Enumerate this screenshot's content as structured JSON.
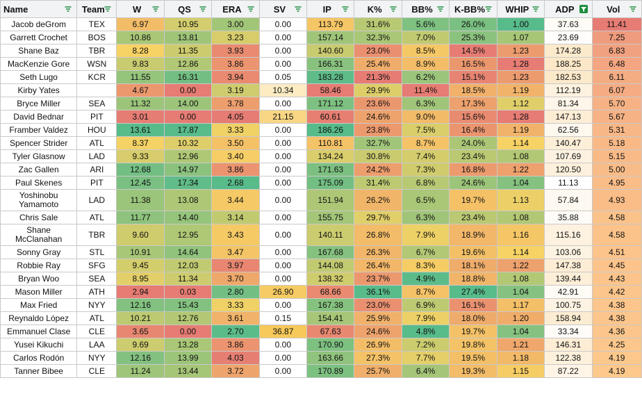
{
  "columns": [
    {
      "key": "name",
      "label": "Name",
      "filter_active": false
    },
    {
      "key": "team",
      "label": "Team",
      "filter_active": false
    },
    {
      "key": "w",
      "label": "W",
      "filter_active": false
    },
    {
      "key": "qs",
      "label": "QS",
      "filter_active": false
    },
    {
      "key": "era",
      "label": "ERA",
      "filter_active": false
    },
    {
      "key": "sv",
      "label": "SV",
      "filter_active": false
    },
    {
      "key": "ip",
      "label": "IP",
      "filter_active": false
    },
    {
      "key": "k",
      "label": "K%",
      "filter_active": false
    },
    {
      "key": "bb",
      "label": "BB%",
      "filter_active": false
    },
    {
      "key": "kbb",
      "label": "K-BB%",
      "filter_active": false
    },
    {
      "key": "whip",
      "label": "WHIP",
      "filter_active": false
    },
    {
      "key": "adp",
      "label": "ADP",
      "filter_active": true
    },
    {
      "key": "vol",
      "label": "Vol",
      "filter_active": false
    }
  ],
  "rows": [
    {
      "name": "Jacob deGrom",
      "team": "TEX",
      "w": "6.97",
      "qs": "10.95",
      "era": "3.00",
      "sv": "0.00",
      "ip": "113.79",
      "k": "31.6%",
      "bb": "5.6%",
      "kbb": "26.0%",
      "whip": "1.00",
      "adp": "37.63",
      "vol": "11.41"
    },
    {
      "name": "Garrett Crochet",
      "team": "BOS",
      "w": "10.86",
      "qs": "13.81",
      "era": "3.23",
      "sv": "0.00",
      "ip": "157.14",
      "k": "32.3%",
      "bb": "7.0%",
      "kbb": "25.3%",
      "whip": "1.07",
      "adp": "23.69",
      "vol": "7.25"
    },
    {
      "name": "Shane Baz",
      "team": "TBR",
      "w": "8.28",
      "qs": "11.35",
      "era": "3.93",
      "sv": "0.00",
      "ip": "140.60",
      "k": "23.0%",
      "bb": "8.5%",
      "kbb": "14.5%",
      "whip": "1.23",
      "adp": "174.28",
      "vol": "6.83"
    },
    {
      "name": "MacKenzie Gore",
      "team": "WSN",
      "w": "9.83",
      "qs": "12.86",
      "era": "3.86",
      "sv": "0.00",
      "ip": "166.31",
      "k": "25.4%",
      "bb": "8.9%",
      "kbb": "16.5%",
      "whip": "1.28",
      "adp": "188.25",
      "vol": "6.48"
    },
    {
      "name": "Seth Lugo",
      "team": "KCR",
      "w": "11.55",
      "qs": "16.31",
      "era": "3.94",
      "sv": "0.05",
      "ip": "183.28",
      "k": "21.3%",
      "bb": "6.2%",
      "kbb": "15.1%",
      "whip": "1.23",
      "adp": "182.53",
      "vol": "6.11"
    },
    {
      "name": "Kirby Yates",
      "team": "",
      "w": "4.67",
      "qs": "0.00",
      "era": "3.19",
      "sv": "10.34",
      "ip": "58.46",
      "k": "29.9%",
      "bb": "11.4%",
      "kbb": "18.5%",
      "whip": "1.19",
      "adp": "112.19",
      "vol": "6.07"
    },
    {
      "name": "Bryce Miller",
      "team": "SEA",
      "w": "11.32",
      "qs": "14.00",
      "era": "3.78",
      "sv": "0.00",
      "ip": "171.12",
      "k": "23.6%",
      "bb": "6.3%",
      "kbb": "17.3%",
      "whip": "1.12",
      "adp": "81.34",
      "vol": "5.70"
    },
    {
      "name": "David Bednar",
      "team": "PIT",
      "w": "3.01",
      "qs": "0.00",
      "era": "4.05",
      "sv": "21.15",
      "ip": "60.61",
      "k": "24.6%",
      "bb": "9.0%",
      "kbb": "15.6%",
      "whip": "1.28",
      "adp": "147.13",
      "vol": "5.67"
    },
    {
      "name": "Framber Valdez",
      "team": "HOU",
      "w": "13.61",
      "qs": "17.87",
      "era": "3.33",
      "sv": "0.00",
      "ip": "186.26",
      "k": "23.8%",
      "bb": "7.5%",
      "kbb": "16.4%",
      "whip": "1.19",
      "adp": "62.56",
      "vol": "5.31"
    },
    {
      "name": "Spencer Strider",
      "team": "ATL",
      "w": "8.37",
      "qs": "10.32",
      "era": "3.50",
      "sv": "0.00",
      "ip": "110.81",
      "k": "32.7%",
      "bb": "8.7%",
      "kbb": "24.0%",
      "whip": "1.14",
      "adp": "140.47",
      "vol": "5.18"
    },
    {
      "name": "Tyler Glasnow",
      "team": "LAD",
      "w": "9.33",
      "qs": "12.96",
      "era": "3.40",
      "sv": "0.00",
      "ip": "134.24",
      "k": "30.8%",
      "bb": "7.4%",
      "kbb": "23.4%",
      "whip": "1.08",
      "adp": "107.69",
      "vol": "5.15"
    },
    {
      "name": "Zac Gallen",
      "team": "ARI",
      "w": "12.68",
      "qs": "14.97",
      "era": "3.86",
      "sv": "0.00",
      "ip": "171.63",
      "k": "24.2%",
      "bb": "7.3%",
      "kbb": "16.8%",
      "whip": "1.22",
      "adp": "120.50",
      "vol": "5.00"
    },
    {
      "name": "Paul Skenes",
      "team": "PIT",
      "w": "12.45",
      "qs": "17.34",
      "era": "2.68",
      "sv": "0.00",
      "ip": "175.09",
      "k": "31.4%",
      "bb": "6.8%",
      "kbb": "24.6%",
      "whip": "1.04",
      "adp": "11.13",
      "vol": "4.95"
    },
    {
      "name": "Yoshinobu Yamamoto",
      "team": "LAD",
      "w": "11.38",
      "qs": "13.08",
      "era": "3.44",
      "sv": "0.00",
      "ip": "151.94",
      "k": "26.2%",
      "bb": "6.5%",
      "kbb": "19.7%",
      "whip": "1.13",
      "adp": "57.84",
      "vol": "4.93"
    },
    {
      "name": "Chris Sale",
      "team": "ATL",
      "w": "11.77",
      "qs": "14.40",
      "era": "3.14",
      "sv": "0.00",
      "ip": "155.75",
      "k": "29.7%",
      "bb": "6.3%",
      "kbb": "23.4%",
      "whip": "1.08",
      "adp": "35.88",
      "vol": "4.58"
    },
    {
      "name": "Shane McClanahan",
      "team": "TBR",
      "w": "9.60",
      "qs": "12.95",
      "era": "3.43",
      "sv": "0.00",
      "ip": "140.11",
      "k": "26.8%",
      "bb": "7.9%",
      "kbb": "18.9%",
      "whip": "1.16",
      "adp": "115.16",
      "vol": "4.58"
    },
    {
      "name": "Sonny Gray",
      "team": "STL",
      "w": "10.91",
      "qs": "14.64",
      "era": "3.47",
      "sv": "0.00",
      "ip": "167.68",
      "k": "26.3%",
      "bb": "6.7%",
      "kbb": "19.6%",
      "whip": "1.14",
      "adp": "103.06",
      "vol": "4.51"
    },
    {
      "name": "Robbie Ray",
      "team": "SFG",
      "w": "9.45",
      "qs": "12.03",
      "era": "3.97",
      "sv": "0.00",
      "ip": "144.08",
      "k": "26.4%",
      "bb": "8.3%",
      "kbb": "18.1%",
      "whip": "1.22",
      "adp": "147.38",
      "vol": "4.45"
    },
    {
      "name": "Bryan Woo",
      "team": "SEA",
      "w": "8.95",
      "qs": "11.34",
      "era": "3.70",
      "sv": "0.00",
      "ip": "138.32",
      "k": "23.7%",
      "bb": "4.9%",
      "kbb": "18.8%",
      "whip": "1.08",
      "adp": "139.44",
      "vol": "4.43"
    },
    {
      "name": "Mason Miller",
      "team": "ATH",
      "w": "2.94",
      "qs": "0.03",
      "era": "2.80",
      "sv": "26.90",
      "ip": "68.66",
      "k": "36.1%",
      "bb": "8.7%",
      "kbb": "27.4%",
      "whip": "1.04",
      "adp": "42.91",
      "vol": "4.42"
    },
    {
      "name": "Max Fried",
      "team": "NYY",
      "w": "12.16",
      "qs": "15.43",
      "era": "3.33",
      "sv": "0.00",
      "ip": "167.38",
      "k": "23.0%",
      "bb": "6.9%",
      "kbb": "16.1%",
      "whip": "1.17",
      "adp": "100.75",
      "vol": "4.38"
    },
    {
      "name": "Reynaldo López",
      "team": "ATL",
      "w": "10.21",
      "qs": "12.76",
      "era": "3.61",
      "sv": "0.15",
      "ip": "154.41",
      "k": "25.9%",
      "bb": "7.9%",
      "kbb": "18.0%",
      "whip": "1.20",
      "adp": "158.94",
      "vol": "4.38"
    },
    {
      "name": "Emmanuel Clase",
      "team": "CLE",
      "w": "3.65",
      "qs": "0.00",
      "era": "2.70",
      "sv": "36.87",
      "ip": "67.63",
      "k": "24.6%",
      "bb": "4.8%",
      "kbb": "19.7%",
      "whip": "1.04",
      "adp": "33.34",
      "vol": "4.36"
    },
    {
      "name": "Yusei Kikuchi",
      "team": "LAA",
      "w": "9.69",
      "qs": "13.28",
      "era": "3.86",
      "sv": "0.00",
      "ip": "170.90",
      "k": "26.9%",
      "bb": "7.2%",
      "kbb": "19.8%",
      "whip": "1.21",
      "adp": "146.31",
      "vol": "4.25"
    },
    {
      "name": "Carlos Rodón",
      "team": "NYY",
      "w": "12.16",
      "qs": "13.99",
      "era": "4.03",
      "sv": "0.00",
      "ip": "163.66",
      "k": "27.3%",
      "bb": "7.7%",
      "kbb": "19.5%",
      "whip": "1.18",
      "adp": "122.38",
      "vol": "4.19"
    },
    {
      "name": "Tanner Bibee",
      "team": "CLE",
      "w": "11.24",
      "qs": "13.44",
      "era": "3.72",
      "sv": "0.00",
      "ip": "170.89",
      "k": "25.7%",
      "bb": "6.4%",
      "kbb": "19.3%",
      "whip": "1.15",
      "adp": "87.22",
      "vol": "4.19"
    }
  ]
}
